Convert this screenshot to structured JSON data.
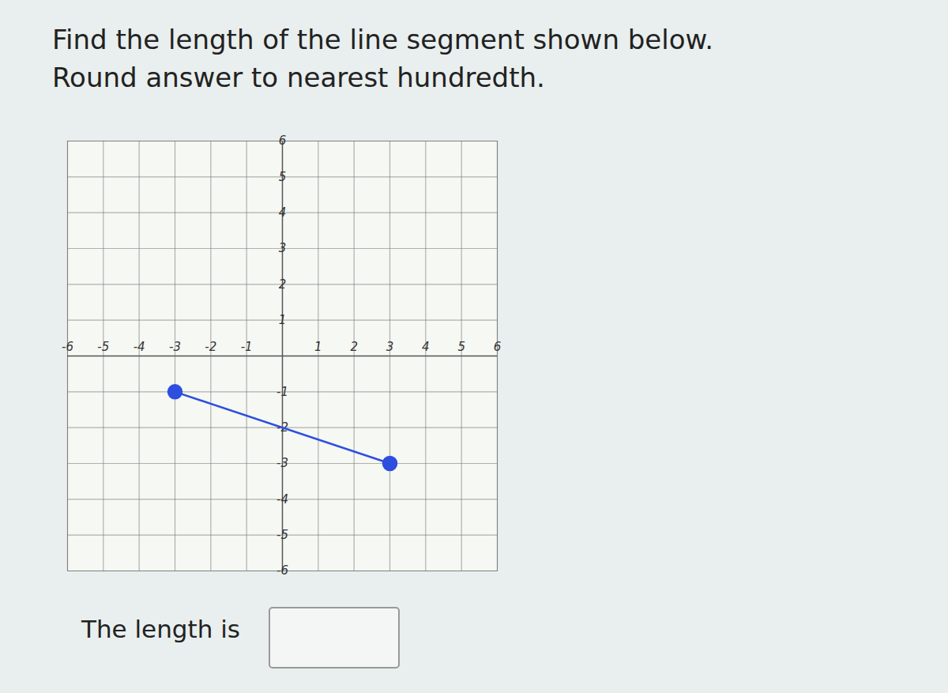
{
  "chart_data": {
    "type": "line",
    "title": "Find the length of the line segment shown below.",
    "subtitle": "Round answer to nearest hundredth.",
    "annotations": [
      "The length is"
    ],
    "x": [
      -3,
      3
    ],
    "values": [
      -1,
      -3
    ],
    "color": "#2e4ee0",
    "marker": "circle",
    "xlim": [
      -6,
      6
    ],
    "ylim": [
      -6,
      6
    ],
    "xticks": [
      -6,
      -5,
      -4,
      -3,
      -2,
      -1,
      1,
      2,
      3,
      4,
      5,
      6
    ],
    "yticks": [
      -6,
      -5,
      -4,
      -3,
      -2,
      -1,
      1,
      2,
      3,
      4,
      5,
      6
    ],
    "grid": true
  }
}
